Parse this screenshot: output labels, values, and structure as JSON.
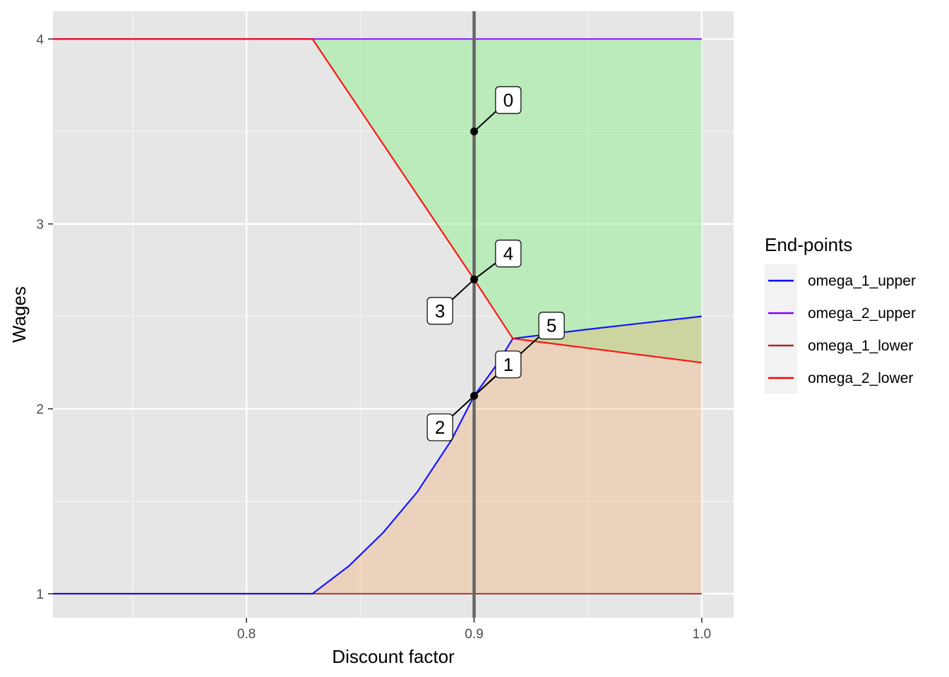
{
  "chart_data": {
    "type": "line",
    "title": "",
    "xlabel": "Discount factor",
    "ylabel": "Wages",
    "xlim": [
      0.715,
      1.014
    ],
    "ylim": [
      0.87,
      4.15
    ],
    "x_ticks": [
      0.8,
      0.9,
      1.0
    ],
    "x_tick_labels": [
      "0.8",
      "0.9",
      "1.0"
    ],
    "y_ticks": [
      1,
      2,
      3,
      4
    ],
    "y_tick_labels": [
      "1",
      "2",
      "3",
      "4"
    ],
    "grid": true,
    "legend": {
      "title": "End-points",
      "placement": "right",
      "entries": [
        {
          "name": "omega_1_upper",
          "color": "#0000ff"
        },
        {
          "name": "omega_2_upper",
          "color": "#7f00ff"
        },
        {
          "name": "omega_1_lower",
          "color": "#a52a2a"
        },
        {
          "name": "omega_2_lower",
          "color": "#ff0000"
        }
      ]
    },
    "series": [
      {
        "name": "omega_1_upper",
        "color": "#0000ff",
        "points": [
          [
            0.715,
            1.0
          ],
          [
            0.829,
            1.0
          ],
          [
            0.845,
            1.15
          ],
          [
            0.86,
            1.33
          ],
          [
            0.875,
            1.55
          ],
          [
            0.89,
            1.83
          ],
          [
            0.9,
            2.07
          ],
          [
            0.91,
            2.24
          ],
          [
            0.917,
            2.38
          ],
          [
            0.95,
            2.43
          ],
          [
            1.0,
            2.5
          ]
        ]
      },
      {
        "name": "omega_2_upper",
        "color": "#7f00ff",
        "points": [
          [
            0.715,
            4.0
          ],
          [
            1.0,
            4.0
          ]
        ]
      },
      {
        "name": "omega_1_lower",
        "color": "#a52a2a",
        "points": [
          [
            0.715,
            1.0
          ],
          [
            1.0,
            1.0
          ]
        ]
      },
      {
        "name": "omega_2_lower",
        "color": "#ff0000",
        "points": [
          [
            0.715,
            4.0
          ],
          [
            0.829,
            4.0
          ],
          [
            0.9,
            2.7
          ],
          [
            0.917,
            2.38
          ],
          [
            1.0,
            2.25
          ]
        ]
      }
    ],
    "shaded_regions": [
      {
        "color": "#90ee90",
        "opacity": 0.5,
        "points": [
          [
            0.829,
            4.0
          ],
          [
            1.0,
            4.0
          ],
          [
            1.0,
            2.25
          ],
          [
            0.917,
            2.38
          ],
          [
            0.9,
            2.7
          ]
        ]
      },
      {
        "color": "#f4a460",
        "opacity": 0.3,
        "points": [
          [
            0.829,
            1.0
          ],
          [
            0.845,
            1.15
          ],
          [
            0.86,
            1.33
          ],
          [
            0.875,
            1.55
          ],
          [
            0.89,
            1.83
          ],
          [
            0.9,
            2.07
          ],
          [
            0.91,
            2.24
          ],
          [
            0.917,
            2.38
          ],
          [
            0.95,
            2.43
          ],
          [
            1.0,
            2.5
          ],
          [
            1.0,
            1.0
          ]
        ]
      }
    ],
    "vline": {
      "x": 0.9,
      "color": "#666666"
    },
    "points": [
      {
        "x": 0.9,
        "y": 3.5
      },
      {
        "x": 0.9,
        "y": 2.7
      },
      {
        "x": 0.9,
        "y": 2.07
      }
    ],
    "annotations": [
      {
        "label": "0",
        "x": 0.9,
        "y": 3.5,
        "lx": 0.915,
        "ly": 3.67
      },
      {
        "label": "4",
        "x": 0.9,
        "y": 2.7,
        "lx": 0.915,
        "ly": 2.84
      },
      {
        "label": "3",
        "x": 0.9,
        "y": 2.7,
        "lx": 0.885,
        "ly": 2.53
      },
      {
        "label": "5",
        "x": 0.9,
        "y": 2.07,
        "lx": 0.934,
        "ly": 2.45
      },
      {
        "label": "1",
        "x": 0.9,
        "y": 2.07,
        "lx": 0.915,
        "ly": 2.24
      },
      {
        "label": "2",
        "x": 0.9,
        "y": 2.07,
        "lx": 0.885,
        "ly": 1.9
      }
    ]
  }
}
